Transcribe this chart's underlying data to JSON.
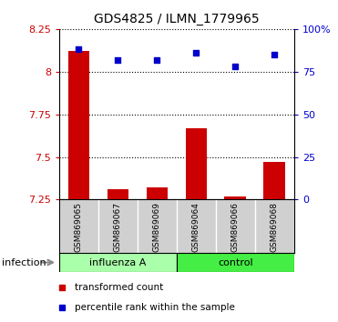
{
  "title": "GDS4825 / ILMN_1779965",
  "samples": [
    "GSM869065",
    "GSM869067",
    "GSM869069",
    "GSM869064",
    "GSM869066",
    "GSM869068"
  ],
  "group_split": 3,
  "group_label_left": "influenza A",
  "group_label_right": "control",
  "group_color_left": "#aaffaa",
  "group_color_right": "#44ee44",
  "transformed_count": [
    8.12,
    7.31,
    7.32,
    7.67,
    7.27,
    7.47
  ],
  "percentile_rank": [
    88,
    82,
    82,
    86,
    78,
    85
  ],
  "ylim_left": [
    7.25,
    8.25
  ],
  "ylim_right": [
    0,
    100
  ],
  "yticks_left": [
    7.25,
    7.5,
    7.75,
    8.0,
    8.25
  ],
  "yticks_right": [
    0,
    25,
    50,
    75,
    100
  ],
  "ytick_labels_left": [
    "7.25",
    "7.5",
    "7.75",
    "8",
    "8.25"
  ],
  "ytick_labels_right": [
    "0",
    "25",
    "50",
    "75",
    "100%"
  ],
  "bar_color": "#CC0000",
  "dot_color": "#0000CC",
  "background_color": "#ffffff",
  "infection_label": "infection",
  "legend_bar_label": "transformed count",
  "legend_dot_label": "percentile rank within the sample",
  "strip_color": "#d0d0d0",
  "strip_text_fontsize": 6.5,
  "title_fontsize": 10,
  "label_fontsize": 8,
  "legend_fontsize": 7.5
}
